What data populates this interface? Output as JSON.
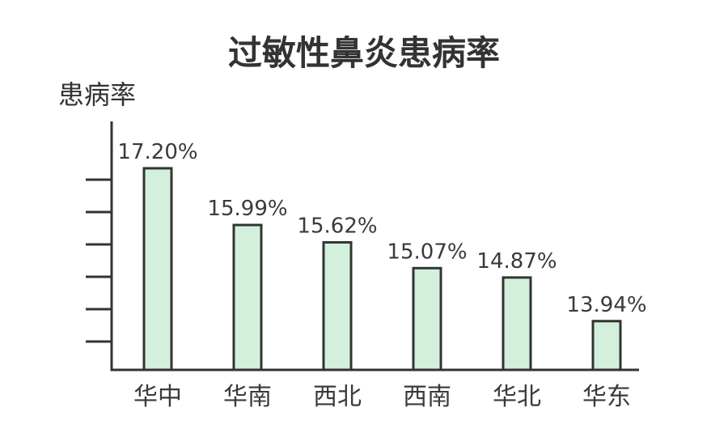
{
  "chart_data": {
    "type": "bar",
    "title": "过敏性鼻炎患病率",
    "ylabel": "患病率",
    "xlabel": "",
    "categories": [
      "华中",
      "华南",
      "西北",
      "西南",
      "华北",
      "华东"
    ],
    "values": [
      17.2,
      15.99,
      15.62,
      15.07,
      14.87,
      13.94
    ],
    "value_labels": [
      "17.20%",
      "15.99%",
      "15.62%",
      "15.07%",
      "14.87%",
      "13.94%"
    ],
    "ylim": [
      12.9,
      18.2
    ],
    "grid": false,
    "legend": "none"
  },
  "colors": {
    "bar_fill": "#d3f0dd",
    "bar_stroke": "#333333",
    "axis": "#333333",
    "text": "#333333"
  }
}
